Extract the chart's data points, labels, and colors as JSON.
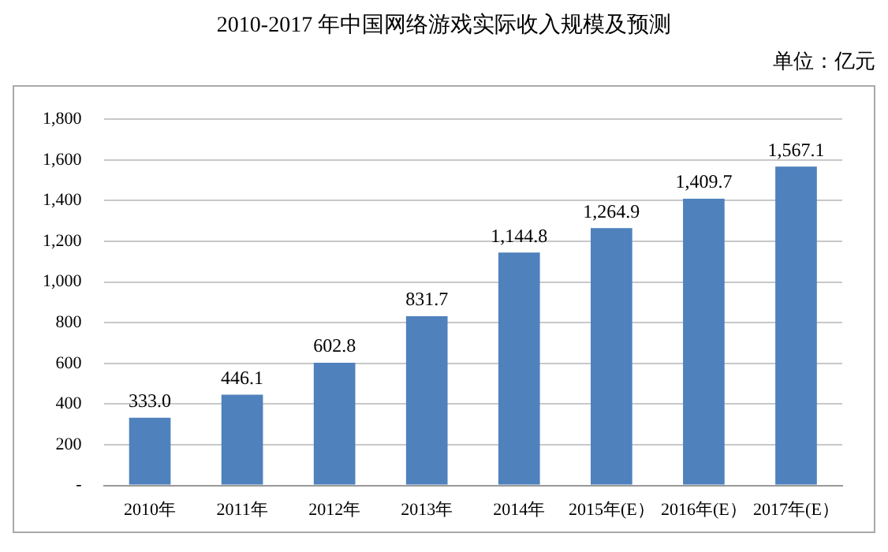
{
  "chart_data": {
    "type": "bar",
    "title": "2010-2017 年中国网络游戏实际收入规模及预测",
    "annotations": [
      "单位：亿元"
    ],
    "categories": [
      "2010年",
      "2011年",
      "2012年",
      "2013年",
      "2014年",
      "2015年(E）",
      "2016年(E）",
      "2017年(E）"
    ],
    "values": [
      333.0,
      446.1,
      602.8,
      831.7,
      1144.8,
      1264.9,
      1409.7,
      1567.1
    ],
    "value_labels": [
      "333.0",
      "446.1",
      "602.8",
      "831.7",
      "1,144.8",
      "1,264.9",
      "1,409.7",
      "1,567.1"
    ],
    "color": "#4f81bd",
    "ylim": [
      0,
      1800
    ],
    "yticks": [
      {
        "value": 0,
        "label": "-"
      },
      200,
      400,
      600,
      800,
      {
        "value": 1000,
        "label": "1,000"
      },
      {
        "value": 1200,
        "label": "1,200"
      },
      {
        "value": 1400,
        "label": "1,400"
      },
      {
        "value": 1600,
        "label": "1,600"
      },
      {
        "value": 1800,
        "label": "1,800"
      }
    ],
    "grid": "y",
    "legend": false
  }
}
